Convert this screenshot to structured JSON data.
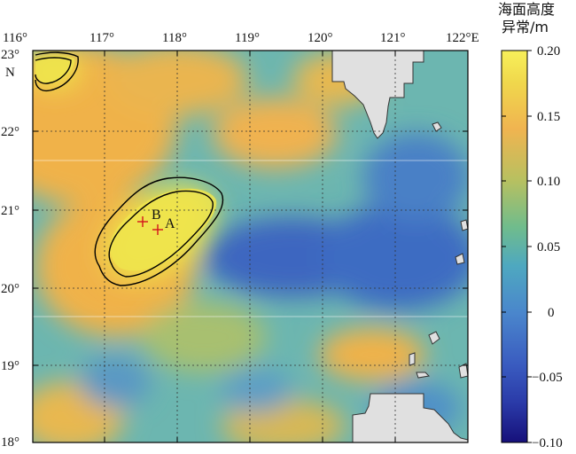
{
  "map": {
    "lon_labels": [
      "116°",
      "117°",
      "118°",
      "119°",
      "120°",
      "121°",
      "122°E"
    ],
    "lat_labels": [
      "23°",
      "22°",
      "21°",
      "20°",
      "19°",
      "18°"
    ],
    "lat_hemisphere": "N",
    "lon_range": [
      116,
      122
    ],
    "lat_range": [
      18,
      23
    ],
    "grid": "dotted"
  },
  "colorbar": {
    "title_line1": "海面高度",
    "title_line2": "异常/m",
    "ticks": [
      "0.20",
      "0.15",
      "0.10",
      "0.05",
      "0",
      "−0.05",
      "−0.10"
    ],
    "range": [
      -0.1,
      0.2
    ]
  },
  "points": [
    {
      "label": "B",
      "lon": 117.5,
      "lat": 20.85
    },
    {
      "label": "A",
      "lon": 117.7,
      "lat": 20.75
    }
  ],
  "colors": {
    "high": "#f0e64a",
    "warm": "#f0b04a",
    "mid": "#6cb8b4",
    "low": "#3e6cc0",
    "land": "#e0e0e0",
    "marker": "#d4141c"
  }
}
